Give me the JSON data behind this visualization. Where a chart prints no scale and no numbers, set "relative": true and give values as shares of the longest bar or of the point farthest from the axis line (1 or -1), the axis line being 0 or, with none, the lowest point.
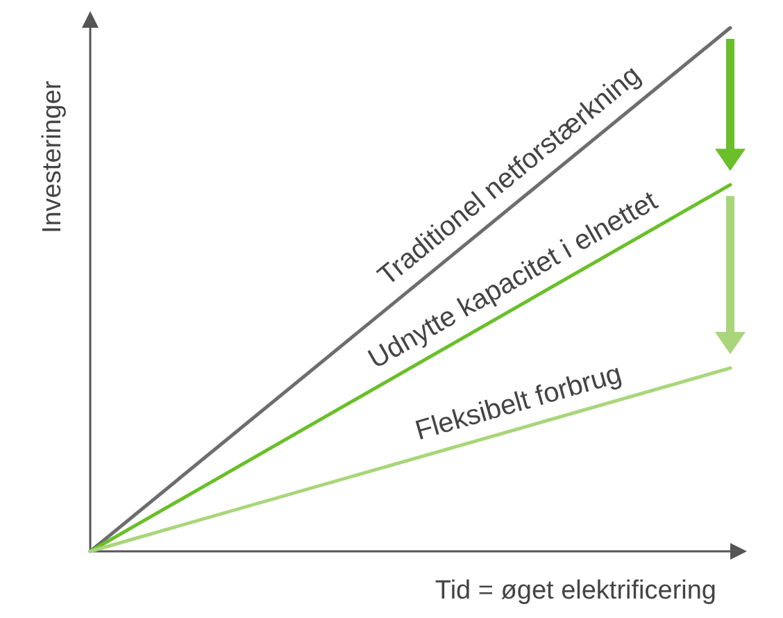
{
  "chart_data": {
    "type": "line",
    "relative": true,
    "xlabel": "Tid = øget elektrificering",
    "ylabel": "Investeringer",
    "categories": [
      null,
      null
    ],
    "series": [
      {
        "name": "Traditionel netforstærkning",
        "color": "#6d6d6d",
        "values": [
          0,
          1
        ]
      },
      {
        "name": "Udnytte kapacitet i elnettet",
        "color": "#6abf2a",
        "values": [
          0,
          0.7
        ]
      },
      {
        "name": "Fleksibelt forbrug",
        "color": "#a9d67a",
        "values": [
          0,
          0.35
        ]
      }
    ],
    "grid": false,
    "legend": false,
    "marker": "none",
    "line_style": "solid"
  }
}
